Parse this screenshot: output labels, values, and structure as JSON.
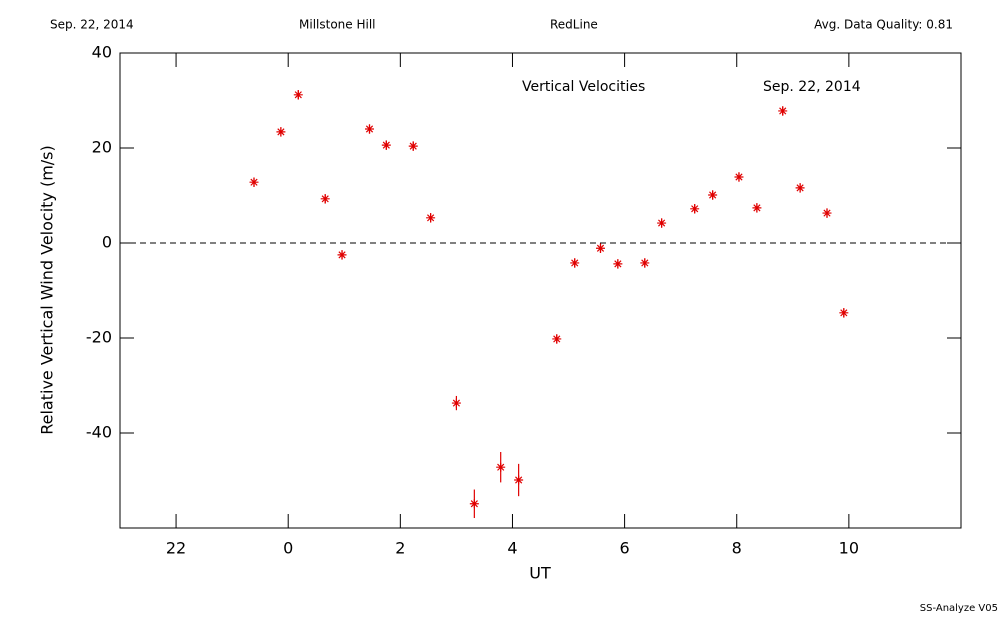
{
  "chart_data": {
    "type": "scatter",
    "header": [
      "Sep. 22, 2014",
      "Millstone Hill",
      "RedLine",
      "Avg. Data Quality: 0.81"
    ],
    "annotations": [
      "Vertical Velocities",
      "Sep. 22, 2014"
    ],
    "footer": "SS-Analyze V05",
    "xlabel": "UT",
    "ylabel": "Relative Vertical Wind Velocity (m/s)",
    "xlim": [
      -3,
      12
    ],
    "xticks": [
      {
        "value": -2,
        "label": "22"
      },
      0,
      2,
      4,
      6,
      8,
      10
    ],
    "ylim": [
      -60,
      40
    ],
    "yticks": [
      -40,
      -20,
      0,
      20,
      40
    ],
    "reference_line": 0,
    "series": [
      {
        "color": "#e00000",
        "x": [
          -0.61,
          -0.13,
          0.18,
          0.66,
          0.96,
          1.45,
          1.75,
          2.23,
          2.54,
          3.0,
          3.32,
          3.79,
          4.11,
          4.79,
          5.11,
          5.57,
          5.88,
          6.36,
          6.66,
          7.25,
          7.57,
          8.04,
          8.36,
          8.82,
          9.13,
          9.61,
          9.91
        ],
        "values": [
          12.8,
          23.4,
          31.2,
          9.3,
          -2.5,
          24.0,
          20.6,
          20.4,
          5.3,
          -33.7,
          -54.9,
          -47.2,
          -49.9,
          -20.2,
          -4.2,
          -1.1,
          -4.4,
          -4.2,
          4.2,
          7.2,
          10.1,
          13.9,
          7.4,
          27.8,
          11.6,
          6.3,
          -14.7
        ],
        "errors": [
          1,
          1,
          1,
          1,
          1,
          1,
          1,
          1,
          1,
          1.5,
          3,
          3.2,
          3.4,
          1,
          1,
          1,
          1,
          1,
          1,
          1,
          1,
          1,
          1,
          1,
          1,
          1,
          1
        ]
      }
    ]
  }
}
